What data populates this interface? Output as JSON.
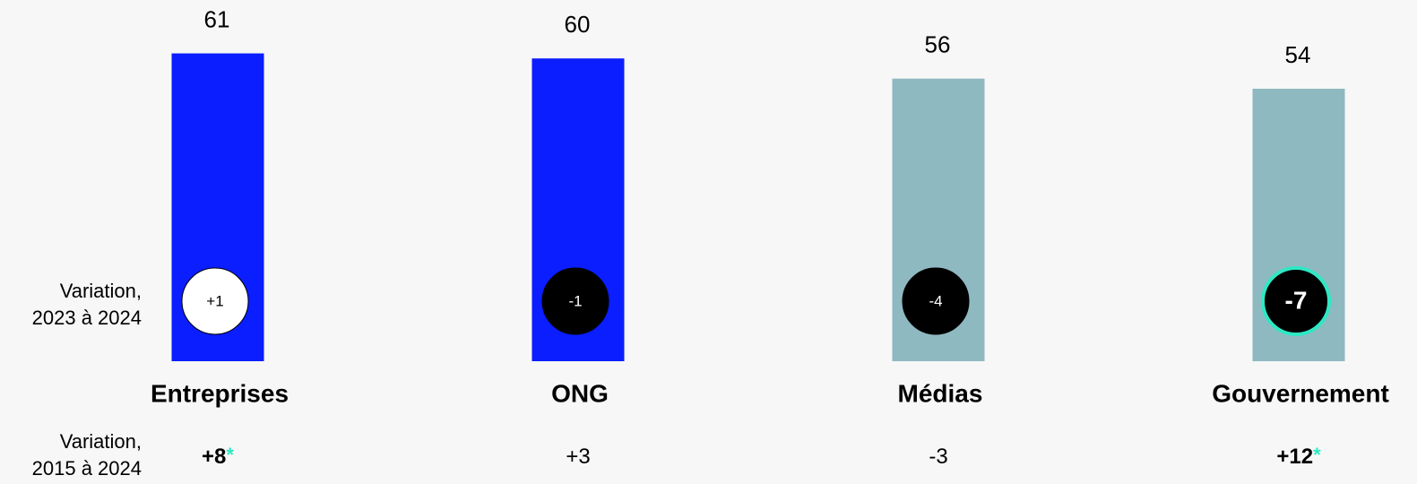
{
  "chart_data": {
    "type": "bar",
    "categories": [
      "Entreprises",
      "ONG",
      "Médias",
      "Gouvernement"
    ],
    "values": [
      61,
      60,
      56,
      54
    ],
    "colors": [
      "#0a1eff",
      "#0a1eff",
      "#8fb9c0",
      "#8fb9c0"
    ],
    "significance_marker": "*",
    "significance_color": "#2ee8c4",
    "change_2023_2024": {
      "label": [
        "Variation,",
        "2023 à 2024"
      ],
      "values": [
        1,
        -1,
        -4,
        -7
      ],
      "value_labels": [
        "+1",
        "-1",
        "-4",
        "-7"
      ],
      "significant": [
        false,
        false,
        false,
        true
      ]
    },
    "change_2015_2024": {
      "label": [
        "Variation,",
        "2015 à 2024"
      ],
      "values": [
        8,
        3,
        -3,
        12
      ],
      "value_labels": [
        "+8",
        "+3",
        "-3",
        "+12"
      ],
      "significant": [
        true,
        false,
        false,
        true
      ]
    }
  }
}
